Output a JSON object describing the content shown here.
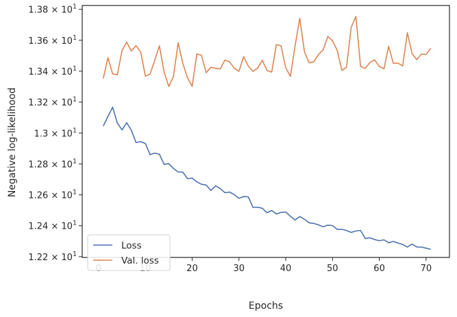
{
  "chart_data": {
    "type": "line",
    "xlabel": "Epochs",
    "ylabel": "Negative log-likelihood",
    "xlim": [
      -3.5,
      75
    ],
    "ylim": [
      12.195,
      13.825
    ],
    "x_ticks": [
      0,
      10,
      20,
      30,
      40,
      50,
      60,
      70
    ],
    "y_ticks": [
      {
        "value": 12.2,
        "mantissa": "1.22",
        "exp": "1"
      },
      {
        "value": 12.4,
        "mantissa": "1.24",
        "exp": "1"
      },
      {
        "value": 12.6,
        "mantissa": "1.26",
        "exp": "1"
      },
      {
        "value": 12.8,
        "mantissa": "1.28",
        "exp": "1"
      },
      {
        "value": 13.0,
        "mantissa": "1.3",
        "exp": "1"
      },
      {
        "value": 13.2,
        "mantissa": "1.32",
        "exp": "1"
      },
      {
        "value": 13.4,
        "mantissa": "1.34",
        "exp": "1"
      },
      {
        "value": 13.6,
        "mantissa": "1.36",
        "exp": "1"
      },
      {
        "value": 13.8,
        "mantissa": "1.38",
        "exp": "1"
      }
    ],
    "grid": false,
    "legend_position": "lower-left",
    "x": [
      1,
      2,
      3,
      4,
      5,
      6,
      7,
      8,
      9,
      10,
      11,
      12,
      13,
      14,
      15,
      16,
      17,
      18,
      19,
      20,
      21,
      22,
      23,
      24,
      25,
      26,
      27,
      28,
      29,
      30,
      31,
      32,
      33,
      34,
      35,
      36,
      37,
      38,
      39,
      40,
      41,
      42,
      43,
      44,
      45,
      46,
      47,
      48,
      49,
      50,
      51,
      52,
      53,
      54,
      55,
      56,
      57,
      58,
      59,
      60,
      61,
      62,
      63,
      64,
      65,
      66,
      67,
      68,
      69,
      70,
      71
    ],
    "series": [
      {
        "name": "Loss",
        "color": "#4c72b0",
        "values": [
          13.045,
          13.107,
          13.167,
          13.065,
          13.02,
          13.067,
          13.018,
          12.938,
          12.944,
          12.932,
          12.86,
          12.87,
          12.863,
          12.797,
          12.802,
          12.771,
          12.748,
          12.747,
          12.705,
          12.708,
          12.684,
          12.668,
          12.663,
          12.628,
          12.658,
          12.641,
          12.614,
          12.618,
          12.601,
          12.577,
          12.589,
          12.587,
          12.519,
          12.52,
          12.513,
          12.484,
          12.499,
          12.476,
          12.486,
          12.489,
          12.462,
          12.437,
          12.46,
          12.442,
          12.419,
          12.415,
          12.406,
          12.393,
          12.404,
          12.401,
          12.377,
          12.377,
          12.369,
          12.357,
          12.366,
          12.37,
          12.317,
          12.322,
          12.311,
          12.303,
          12.309,
          12.29,
          12.299,
          12.288,
          12.279,
          12.262,
          12.281,
          12.263,
          12.262,
          12.255,
          12.247
        ]
      },
      {
        "name": "Val. loss",
        "color": "#dd8452",
        "values": [
          13.353,
          13.487,
          13.383,
          13.376,
          13.532,
          13.588,
          13.53,
          13.565,
          13.524,
          13.368,
          13.381,
          13.47,
          13.564,
          13.395,
          13.301,
          13.365,
          13.584,
          13.451,
          13.357,
          13.302,
          13.512,
          13.502,
          13.39,
          13.425,
          13.419,
          13.414,
          13.472,
          13.461,
          13.42,
          13.399,
          13.494,
          13.433,
          13.399,
          13.42,
          13.47,
          13.404,
          13.394,
          13.572,
          13.564,
          13.422,
          13.366,
          13.564,
          13.742,
          13.526,
          13.454,
          13.461,
          13.508,
          13.538,
          13.625,
          13.596,
          13.535,
          13.405,
          13.426,
          13.684,
          13.754,
          13.43,
          13.418,
          13.456,
          13.473,
          13.431,
          13.415,
          13.56,
          13.451,
          13.452,
          13.434,
          13.649,
          13.514,
          13.475,
          13.511,
          13.508,
          13.548
        ]
      }
    ]
  }
}
